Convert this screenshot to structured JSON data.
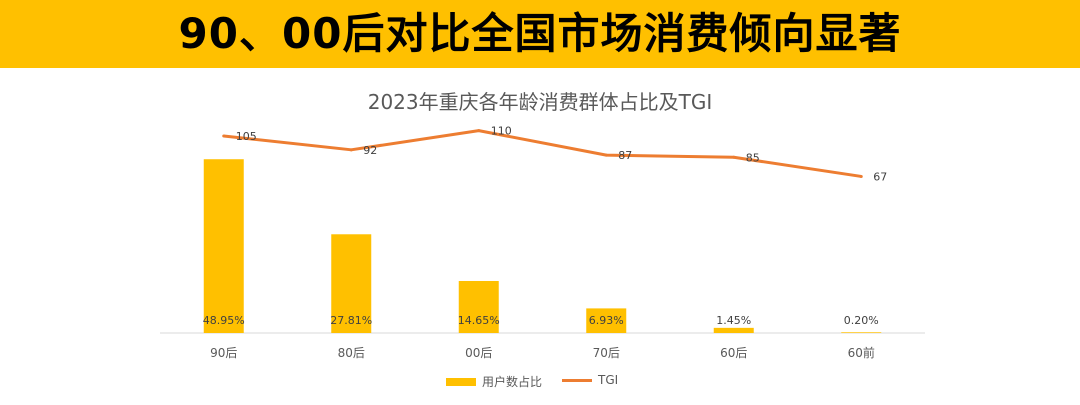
{
  "header": {
    "title": "90、00后对比全国市场消费倾向显著"
  },
  "colors": {
    "banner": "#ffc000",
    "bar": "#ffc000",
    "line": "#ed7d31",
    "axis": "#d9d9d9"
  },
  "chart_data": {
    "type": "bar",
    "title": "2023年重庆各年龄消费群体占比及TGI",
    "categories": [
      "90后",
      "80后",
      "00后",
      "70后",
      "60后",
      "60前"
    ],
    "series": [
      {
        "name": "用户数占比",
        "kind": "bar",
        "values": [
          48.95,
          27.81,
          14.65,
          6.93,
          1.45,
          0.2
        ],
        "labels": [
          "48.95%",
          "27.81%",
          "14.65%",
          "6.93%",
          "1.45%",
          "0.20%"
        ]
      },
      {
        "name": "TGI",
        "kind": "line",
        "values": [
          105,
          92,
          110,
          87,
          85,
          67
        ],
        "labels": [
          "105",
          "92",
          "110",
          "87",
          "85",
          "67"
        ]
      }
    ],
    "bar_ylim": [
      0,
      60
    ],
    "line_ylim": [
      -80,
      120
    ],
    "legend": [
      "用户数占比",
      "TGI"
    ],
    "legend_position": "bottom",
    "grid": false
  }
}
